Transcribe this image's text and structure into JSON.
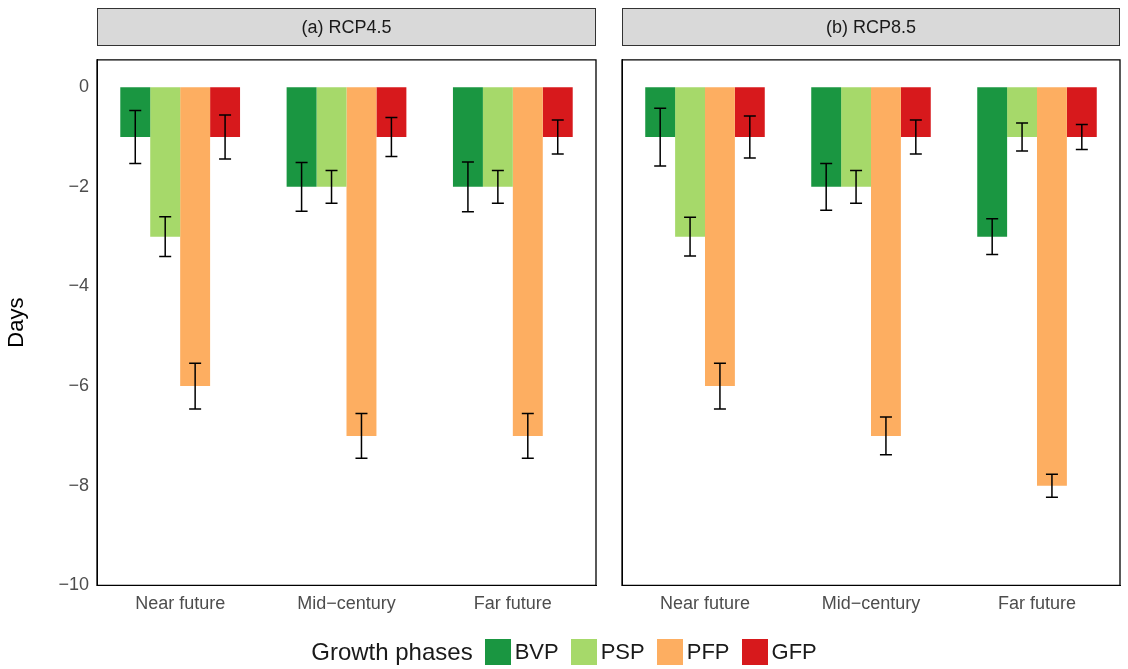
{
  "chart_data": [
    {
      "type": "bar",
      "title": "(a) RCP4.5",
      "ylabel": "Days",
      "categories": [
        "Near future",
        "Mid−century",
        "Far future"
      ],
      "ylim": [
        -10,
        0.55
      ],
      "yticks": [
        -10,
        -8,
        -6,
        -4,
        -2,
        0
      ],
      "grid": false,
      "legend": "bottom",
      "legend_title": "Growth phases",
      "series": [
        {
          "name": "BVP",
          "color": "#1a9641",
          "values": [
            -1,
            -2,
            -2
          ],
          "errors": [
            0.53,
            0.49,
            0.5
          ]
        },
        {
          "name": "PSP",
          "color": "#a6d96a",
          "values": [
            -3,
            -2,
            -2
          ],
          "errors": [
            0.4,
            0.33,
            0.33
          ]
        },
        {
          "name": "PFP",
          "color": "#fdae61",
          "values": [
            -6,
            -7,
            -7
          ],
          "errors": [
            0.46,
            0.45,
            0.45
          ]
        },
        {
          "name": "GFP",
          "color": "#d7191c",
          "values": [
            -1,
            -1,
            -1
          ],
          "errors": [
            0.44,
            0.39,
            0.34
          ]
        }
      ]
    },
    {
      "type": "bar",
      "title": "(b) RCP8.5",
      "categories": [
        "Near future",
        "Mid−century",
        "Far future"
      ],
      "ylim": [
        -10,
        0.55
      ],
      "yticks": [
        -10,
        -8,
        -6,
        -4,
        -2,
        0
      ],
      "grid": false,
      "tick_labels": "x",
      "series": [
        {
          "color": "#1a9641",
          "values": [
            -1,
            -2,
            -3
          ],
          "errors": [
            0.58,
            0.47,
            0.36
          ]
        },
        {
          "color": "#a6d96a",
          "values": [
            -3,
            -2,
            -1
          ],
          "errors": [
            0.39,
            0.33,
            0.28
          ]
        },
        {
          "color": "#fdae61",
          "values": [
            -6,
            -7,
            -8
          ],
          "errors": [
            0.46,
            0.38,
            0.23
          ]
        },
        {
          "color": "#d7191c",
          "values": [
            -1,
            -1,
            -1
          ],
          "errors": [
            0.42,
            0.34,
            0.25
          ]
        }
      ]
    }
  ]
}
